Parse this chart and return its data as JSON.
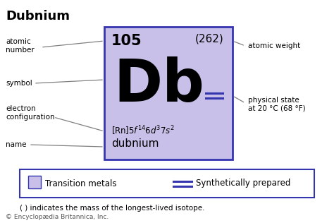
{
  "title": "Dubnium",
  "atomic_number": "105",
  "atomic_weight": "(262)",
  "symbol": "Db",
  "name": "dubnium",
  "box_color": "#c8c0e8",
  "box_line_color": "#3535b0",
  "annotation_line_color": "#808080",
  "label_color": "#000000",
  "title_fontsize": 13,
  "footnote_text": "( ) indicates the mass of the longest-lived isotope.",
  "copyright_text": "© Encyclopædia Britannica, Inc.",
  "legend_tm_text": "Transition metals",
  "legend_sp_text": "Synthetically prepared",
  "bg_color": "#ffffff"
}
